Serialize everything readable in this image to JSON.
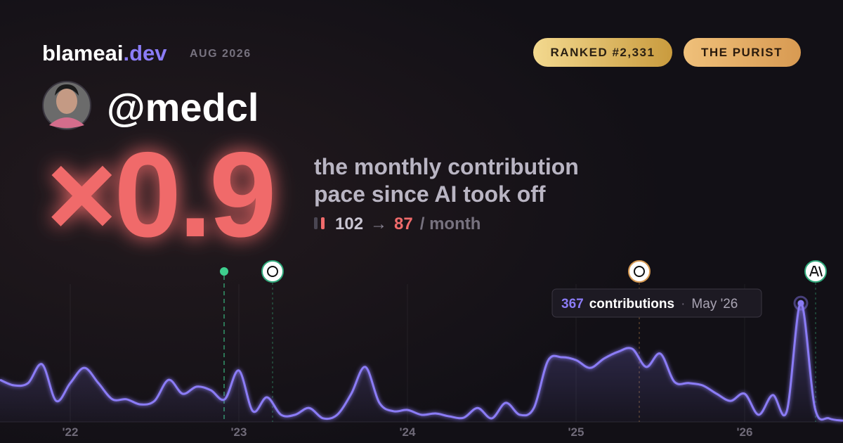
{
  "header": {
    "brand": "blameai",
    "brand_tld": ".dev",
    "date": "AUG 2026",
    "badges": [
      "RANKED #2,331",
      "THE PURIST"
    ]
  },
  "user": {
    "handle": "@medcl"
  },
  "stat": {
    "multiplier": "×0.9",
    "caption_lines": [
      "the monthly contribution",
      "pace since AI took off"
    ],
    "before": 102,
    "arrow": "→",
    "after": 87,
    "unit": "/ month"
  },
  "chart_data": {
    "type": "area",
    "categories": [
      null,
      null,
      null,
      null,
      null,
      "'22",
      null,
      null,
      null,
      null,
      null,
      null,
      null,
      null,
      null,
      null,
      null,
      "'23",
      null,
      null,
      null,
      null,
      null,
      null,
      null,
      null,
      null,
      null,
      null,
      "'24",
      null,
      null,
      null,
      null,
      null,
      null,
      null,
      null,
      null,
      null,
      null,
      "'25",
      null,
      null,
      null,
      null,
      null,
      null,
      null,
      null,
      null,
      null,
      null,
      "'26",
      null,
      null,
      null,
      null,
      null,
      null,
      null
    ],
    "values": [
      130,
      113,
      120,
      178,
      65,
      120,
      167,
      120,
      70,
      70,
      54,
      65,
      130,
      87,
      109,
      98,
      70,
      159,
      33,
      76,
      22,
      22,
      43,
      11,
      22,
      87,
      170,
      59,
      33,
      37,
      22,
      26,
      17,
      13,
      43,
      11,
      59,
      22,
      43,
      189,
      200,
      191,
      167,
      196,
      217,
      226,
      170,
      211,
      124,
      120,
      113,
      87,
      65,
      87,
      22,
      83,
      33,
      367,
      43,
      11,
      4
    ],
    "color": "#8b7cf6",
    "ylim": [
      0,
      400
    ],
    "tooltip": {
      "label": "contributions",
      "separator": "·",
      "date": "May '26"
    }
  }
}
